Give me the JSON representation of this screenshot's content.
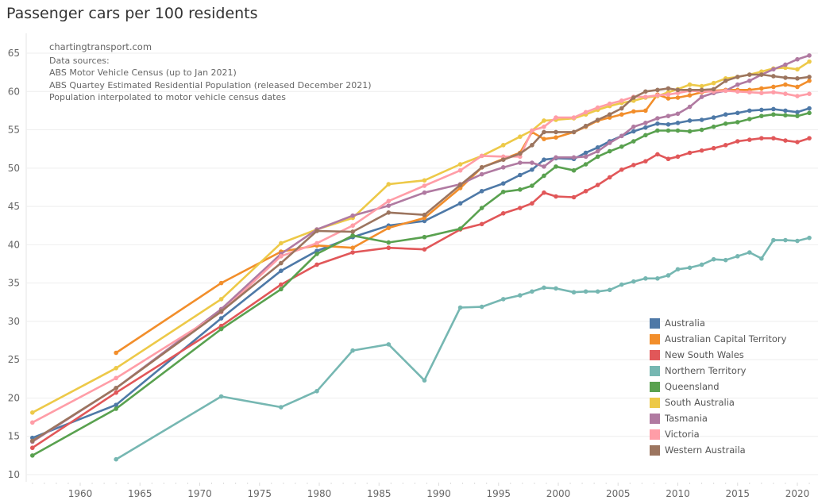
{
  "chart_data": {
    "type": "line",
    "title": "Passenger cars per 100 residents",
    "xlabel": "",
    "ylabel": "",
    "xlim": [
      1955.5,
      2022
    ],
    "ylim": [
      9,
      67
    ],
    "xticks": [
      1960,
      1965,
      1970,
      1975,
      1980,
      1985,
      1990,
      1995,
      2000,
      2005,
      2010,
      2015,
      2020
    ],
    "yticks": [
      10,
      15,
      20,
      25,
      30,
      35,
      40,
      45,
      50,
      55,
      60,
      65
    ],
    "grid": true,
    "legend_position": "bottom-right",
    "annotations": [
      "chartingtransport.com",
      "Data sources:",
      "ABS Motor Vehicle Census (up to Jan 2021)",
      "ABS Quartey Estimated Residential Population (released December 2021)",
      "Population interpolated to motor vehicle census dates"
    ],
    "series": [
      {
        "name": "Australia",
        "color": "#4e79a7",
        "x": [
          1956,
          1963,
          1971.8,
          1976.8,
          1979.8,
          1982.8,
          1985.8,
          1988.8,
          1991.8,
          1993.6,
          1995.4,
          1996.8,
          1997.8,
          1998.8,
          1999.8,
          2001.3,
          2002.3,
          2003.3,
          2004.3,
          2005.3,
          2006.3,
          2007.3,
          2008.3,
          2009.2,
          2010,
          2011,
          2012,
          2013,
          2014,
          2015,
          2016,
          2017,
          2018,
          2019,
          2020,
          2021
        ],
        "y": [
          14.8,
          19.1,
          30.4,
          36.6,
          39.2,
          41.0,
          42.5,
          43.1,
          45.4,
          47.0,
          48.0,
          49.1,
          49.8,
          51.1,
          51.3,
          51.2,
          52.0,
          52.7,
          53.5,
          54.2,
          54.8,
          55.3,
          55.8,
          55.7,
          55.9,
          56.2,
          56.3,
          56.6,
          57.0,
          57.2,
          57.5,
          57.6,
          57.7,
          57.5,
          57.3,
          57.8
        ]
      },
      {
        "name": "Australian Capital Territory",
        "color": "#f28e2b",
        "x": [
          1963,
          1971.8,
          1976.8,
          1979.8,
          1982.8,
          1985.8,
          1988.8,
          1991.8,
          1993.6,
          1995.4,
          1996.8,
          1997.8,
          1998.8,
          1999.8,
          2001.3,
          2002.3,
          2003.3,
          2004.3,
          2005.3,
          2006.3,
          2007.3,
          2008.3,
          2009.2,
          2010,
          2011,
          2012,
          2013,
          2014,
          2015,
          2016,
          2017,
          2018,
          2019,
          2020,
          2021
        ],
        "y": [
          25.9,
          35.0,
          39.1,
          39.9,
          39.6,
          42.2,
          43.5,
          47.4,
          50.1,
          51.2,
          52.0,
          54.7,
          53.8,
          54.0,
          54.7,
          55.4,
          56.2,
          56.6,
          57.0,
          57.4,
          57.5,
          59.6,
          59.1,
          59.2,
          59.5,
          59.9,
          60.1,
          60.2,
          60.2,
          60.2,
          60.4,
          60.6,
          60.9,
          60.6,
          61.4
        ]
      },
      {
        "name": "New South Wales",
        "color": "#e15759",
        "x": [
          1956,
          1963,
          1971.8,
          1976.8,
          1979.8,
          1982.8,
          1985.8,
          1988.8,
          1991.8,
          1993.6,
          1995.4,
          1996.8,
          1997.8,
          1998.8,
          1999.8,
          2001.3,
          2002.3,
          2003.3,
          2004.3,
          2005.3,
          2006.3,
          2007.3,
          2008.3,
          2009.2,
          2010,
          2011,
          2012,
          2013,
          2014,
          2015,
          2016,
          2017,
          2018,
          2019,
          2020,
          2021
        ],
        "y": [
          13.5,
          20.7,
          29.4,
          34.8,
          37.4,
          39.0,
          39.6,
          39.4,
          42.0,
          42.7,
          44.1,
          44.8,
          45.4,
          46.8,
          46.3,
          46.2,
          47.0,
          47.8,
          48.8,
          49.8,
          50.4,
          50.9,
          51.8,
          51.2,
          51.5,
          52.0,
          52.3,
          52.6,
          53.0,
          53.5,
          53.7,
          53.9,
          53.9,
          53.6,
          53.4,
          53.9
        ]
      },
      {
        "name": "Northern Territory",
        "color": "#76b7b2",
        "x": [
          1963,
          1971.8,
          1976.8,
          1979.8,
          1982.8,
          1985.8,
          1988.8,
          1991.8,
          1993.6,
          1995.4,
          1996.8,
          1997.8,
          1998.8,
          1999.8,
          2001.3,
          2002.3,
          2003.3,
          2004.3,
          2005.3,
          2006.3,
          2007.3,
          2008.3,
          2009.2,
          2010,
          2011,
          2012,
          2013,
          2014,
          2015,
          2016,
          2017,
          2018,
          2019,
          2020,
          2021
        ],
        "y": [
          12.0,
          20.2,
          18.8,
          20.9,
          26.2,
          27.0,
          22.3,
          31.8,
          31.9,
          32.9,
          33.4,
          33.9,
          34.4,
          34.3,
          33.8,
          33.9,
          33.9,
          34.1,
          34.8,
          35.2,
          35.6,
          35.6,
          36.0,
          36.8,
          37.0,
          37.4,
          38.1,
          38.0,
          38.5,
          39.0,
          38.2,
          40.6,
          40.6,
          40.5,
          40.9
        ]
      },
      {
        "name": "Queensland",
        "color": "#59a14f",
        "x": [
          1956,
          1963,
          1971.8,
          1976.8,
          1979.8,
          1982.8,
          1985.8,
          1988.8,
          1991.8,
          1993.6,
          1995.4,
          1996.8,
          1997.8,
          1998.8,
          1999.8,
          2001.3,
          2002.3,
          2003.3,
          2004.3,
          2005.3,
          2006.3,
          2007.3,
          2008.3,
          2009.2,
          2010,
          2011,
          2012,
          2013,
          2014,
          2015,
          2016,
          2017,
          2018,
          2019,
          2020,
          2021
        ],
        "y": [
          12.5,
          18.6,
          29.0,
          34.2,
          38.8,
          41.2,
          40.3,
          41.0,
          42.1,
          44.8,
          46.9,
          47.2,
          47.7,
          49.0,
          50.2,
          49.7,
          50.5,
          51.5,
          52.2,
          52.8,
          53.5,
          54.3,
          54.9,
          54.9,
          54.9,
          54.8,
          55.0,
          55.4,
          55.8,
          56.0,
          56.4,
          56.8,
          57.0,
          56.9,
          56.8,
          57.2
        ]
      },
      {
        "name": "South Australia",
        "color": "#edc948",
        "x": [
          1956,
          1963,
          1971.8,
          1976.8,
          1979.8,
          1982.8,
          1985.8,
          1988.8,
          1991.8,
          1993.6,
          1995.4,
          1996.8,
          1997.8,
          1998.8,
          1999.8,
          2001.3,
          2002.3,
          2003.3,
          2004.3,
          2005.3,
          2006.3,
          2007.3,
          2008.3,
          2009.2,
          2010,
          2011,
          2012,
          2013,
          2014,
          2015,
          2016,
          2017,
          2018,
          2019,
          2020,
          2021
        ],
        "y": [
          18.1,
          23.9,
          32.9,
          40.2,
          42.0,
          43.5,
          47.9,
          48.4,
          50.5,
          51.6,
          53.0,
          54.1,
          54.9,
          56.2,
          56.3,
          56.5,
          57.0,
          57.6,
          58.1,
          58.5,
          58.8,
          59.2,
          59.4,
          59.9,
          60.3,
          60.9,
          60.7,
          61.1,
          61.7,
          61.9,
          62.2,
          62.6,
          63.0,
          63.1,
          62.9,
          63.9
        ]
      },
      {
        "name": "Tasmania",
        "color": "#b07aa1",
        "x": [
          1956,
          1963,
          1971.8,
          1976.8,
          1979.8,
          1982.8,
          1985.8,
          1988.8,
          1991.8,
          1993.6,
          1995.4,
          1996.8,
          1997.8,
          1998.8,
          1999.8,
          2001.3,
          2002.3,
          2003.3,
          2004.3,
          2005.3,
          2006.3,
          2007.3,
          2008.3,
          2009.2,
          2010,
          2011,
          2012,
          2013,
          2014,
          2015,
          2016,
          2017,
          2018,
          2019,
          2020,
          2021
        ],
        "y": [
          14.3,
          21.3,
          31.6,
          38.8,
          42.0,
          43.8,
          45.1,
          46.8,
          47.9,
          49.2,
          50.1,
          50.7,
          50.7,
          50.2,
          51.4,
          51.4,
          51.5,
          52.2,
          53.3,
          54.2,
          55.4,
          55.9,
          56.5,
          56.8,
          57.1,
          58.0,
          59.3,
          59.8,
          60.1,
          60.9,
          61.4,
          62.2,
          62.9,
          63.5,
          64.2,
          64.7
        ]
      },
      {
        "name": "Victoria",
        "color": "#ff9da7",
        "x": [
          1956,
          1963,
          1971.8,
          1976.8,
          1979.8,
          1982.8,
          1985.8,
          1988.8,
          1991.8,
          1993.6,
          1995.4,
          1996.8,
          1997.8,
          1998.8,
          1999.8,
          2001.3,
          2002.3,
          2003.3,
          2004.3,
          2005.3,
          2006.3,
          2007.3,
          2008.3,
          2009.2,
          2010,
          2011,
          2012,
          2013,
          2014,
          2015,
          2016,
          2017,
          2018,
          2019,
          2020,
          2021
        ],
        "y": [
          16.8,
          22.6,
          31.2,
          38.5,
          40.2,
          42.5,
          45.7,
          47.7,
          49.7,
          51.6,
          51.5,
          51.5,
          54.9,
          55.4,
          56.6,
          56.6,
          57.3,
          57.9,
          58.4,
          58.8,
          59.3,
          59.3,
          59.5,
          59.6,
          59.8,
          60.1,
          60.0,
          60.0,
          60.1,
          60.0,
          59.9,
          59.8,
          59.9,
          59.7,
          59.4,
          59.7
        ]
      },
      {
        "name": "Western Austraila",
        "color": "#9c755f",
        "x": [
          1956,
          1963,
          1971.8,
          1976.8,
          1979.8,
          1982.8,
          1985.8,
          1988.8,
          1991.8,
          1993.6,
          1995.4,
          1996.8,
          1997.8,
          1998.8,
          1999.8,
          2001.3,
          2002.3,
          2003.3,
          2004.3,
          2005.3,
          2006.3,
          2007.3,
          2008.3,
          2009.2,
          2010,
          2011,
          2012,
          2013,
          2014,
          2015,
          2016,
          2017,
          2018,
          2019,
          2020,
          2021
        ],
        "y": [
          14.4,
          21.3,
          31.3,
          37.6,
          41.8,
          41.7,
          44.2,
          43.9,
          47.8,
          50.1,
          51.1,
          51.9,
          53.0,
          54.7,
          54.7,
          54.7,
          55.5,
          56.3,
          57.0,
          57.8,
          59.2,
          60.0,
          60.2,
          60.4,
          60.2,
          60.2,
          60.2,
          60.3,
          61.4,
          61.9,
          62.2,
          62.2,
          62.0,
          61.8,
          61.7,
          61.9
        ]
      }
    ]
  }
}
